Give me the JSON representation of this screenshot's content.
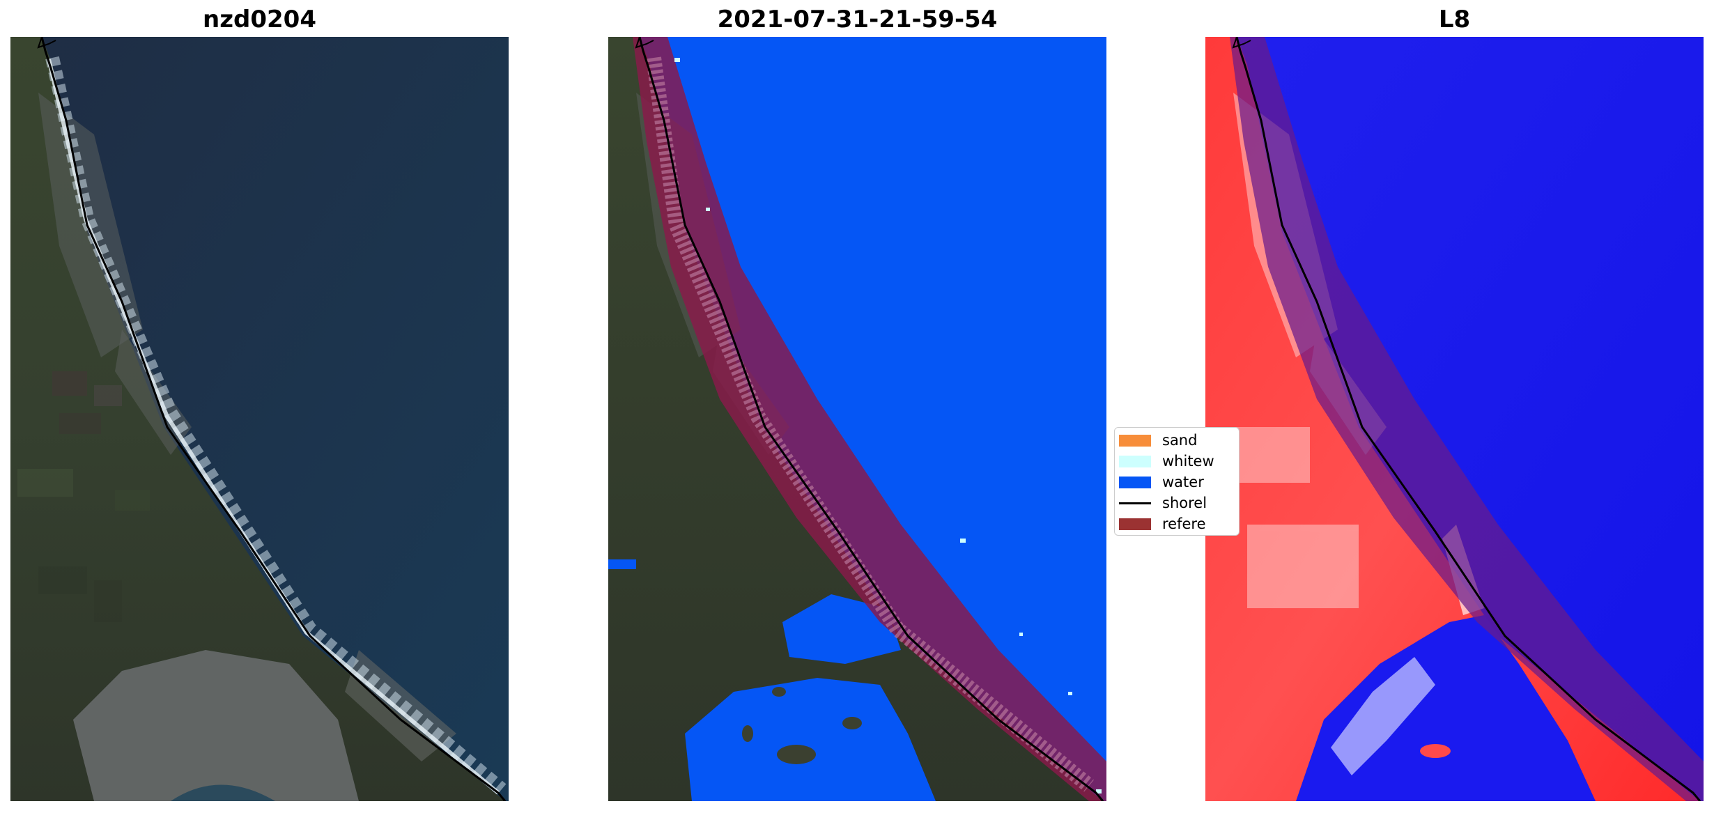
{
  "panels": [
    {
      "title": "nzd0204"
    },
    {
      "title": "2021-07-31-21-59-54"
    },
    {
      "title": "L8"
    }
  ],
  "legend": {
    "items": [
      {
        "label": "sand",
        "color": "#f78d3a",
        "kind": "patch"
      },
      {
        "label": "whitew",
        "color": "#cdfffe",
        "kind": "patch"
      },
      {
        "label": "water",
        "color": "#0556f5",
        "kind": "patch"
      },
      {
        "label": "shorel",
        "color": "#000000",
        "kind": "line"
      },
      {
        "label": "refere",
        "color": "#9b3232",
        "kind": "patch"
      }
    ]
  },
  "colors": {
    "ocean_rgb": "#1f3550",
    "land_rgb": "#3a4436",
    "water_class": "#0556f5",
    "reference_band": "#8a1a4a",
    "mndwi_land": "#ff2020",
    "mndwi_water": "#1010f0",
    "shoreline": "#000000"
  }
}
